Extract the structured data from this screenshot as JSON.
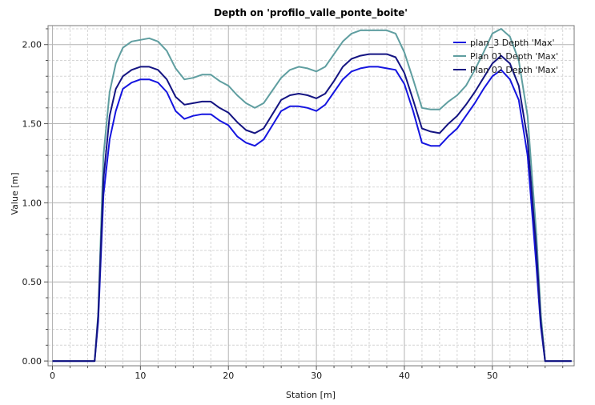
{
  "chart_data": {
    "type": "line",
    "title": "Depth on 'profilo_valle_ponte_boite'",
    "xlabel": "Station [m]",
    "ylabel": "Value [m]",
    "xlim": [
      -0.5,
      59.3
    ],
    "ylim": [
      -0.03,
      2.12
    ],
    "xticks": [
      0,
      10,
      20,
      30,
      40,
      50
    ],
    "xtick_labels": [
      "0",
      "10",
      "20",
      "30",
      "40",
      "50"
    ],
    "yticks": [
      0,
      0.5,
      1.0,
      1.5,
      2.0
    ],
    "ytick_labels": [
      "0.00",
      "0.50",
      "1.00",
      "1.50",
      "2.00"
    ],
    "grid": true,
    "legend_position": "top-right",
    "series": [
      {
        "name": "plan_3 Depth 'Max'",
        "color": "#1515e0",
        "x": [
          0,
          2,
          4,
          4.8,
          5.2,
          5.8,
          6.5,
          7.2,
          8,
          9,
          10,
          11,
          12,
          13,
          14,
          15,
          16,
          17,
          18,
          19,
          20,
          21,
          22,
          23,
          24,
          25,
          26,
          27,
          28,
          29,
          30,
          31,
          32,
          33,
          34,
          35,
          36,
          37,
          38,
          39,
          40,
          41,
          42,
          43,
          44,
          45,
          46,
          47,
          48,
          49,
          50,
          51,
          52,
          53,
          54,
          55,
          55.5,
          56,
          58,
          59
        ],
        "y": [
          0,
          0,
          0,
          0,
          0.25,
          1.05,
          1.4,
          1.58,
          1.72,
          1.76,
          1.78,
          1.78,
          1.76,
          1.7,
          1.58,
          1.53,
          1.55,
          1.56,
          1.56,
          1.52,
          1.49,
          1.42,
          1.38,
          1.36,
          1.4,
          1.49,
          1.58,
          1.61,
          1.61,
          1.6,
          1.58,
          1.62,
          1.7,
          1.78,
          1.83,
          1.85,
          1.86,
          1.86,
          1.85,
          1.84,
          1.75,
          1.58,
          1.38,
          1.36,
          1.36,
          1.42,
          1.47,
          1.55,
          1.63,
          1.72,
          1.8,
          1.84,
          1.78,
          1.65,
          1.3,
          0.6,
          0.22,
          0,
          0,
          0
        ]
      },
      {
        "name": "Plan 01 Depth 'Max'",
        "color": "#5f9ea0",
        "x": [
          0,
          2,
          4,
          4.8,
          5.2,
          5.8,
          6.5,
          7.2,
          8,
          9,
          10,
          11,
          12,
          13,
          14,
          15,
          16,
          17,
          18,
          19,
          20,
          21,
          22,
          23,
          24,
          25,
          26,
          27,
          28,
          29,
          30,
          31,
          32,
          33,
          34,
          35,
          36,
          37,
          38,
          39,
          40,
          41,
          42,
          43,
          44,
          45,
          46,
          47,
          48,
          49,
          50,
          51,
          52,
          53,
          54,
          55,
          55.5,
          56,
          58,
          59
        ],
        "y": [
          0,
          0,
          0,
          0,
          0.3,
          1.3,
          1.7,
          1.88,
          1.98,
          2.02,
          2.03,
          2.04,
          2.02,
          1.96,
          1.85,
          1.78,
          1.79,
          1.81,
          1.81,
          1.77,
          1.74,
          1.68,
          1.63,
          1.6,
          1.63,
          1.71,
          1.79,
          1.84,
          1.86,
          1.85,
          1.83,
          1.86,
          1.94,
          2.02,
          2.07,
          2.09,
          2.09,
          2.09,
          2.09,
          2.07,
          1.95,
          1.78,
          1.6,
          1.59,
          1.59,
          1.64,
          1.68,
          1.74,
          1.84,
          1.95,
          2.07,
          2.1,
          2.05,
          1.9,
          1.55,
          0.8,
          0.3,
          0,
          0,
          0
        ]
      },
      {
        "name": "Plan 02 Depth 'Max'",
        "color": "#141482",
        "x": [
          0,
          2,
          4,
          4.8,
          5.2,
          5.8,
          6.5,
          7.2,
          8,
          9,
          10,
          11,
          12,
          13,
          14,
          15,
          16,
          17,
          18,
          19,
          20,
          21,
          22,
          23,
          24,
          25,
          26,
          27,
          28,
          29,
          30,
          31,
          32,
          33,
          34,
          35,
          36,
          37,
          38,
          39,
          40,
          41,
          42,
          43,
          44,
          45,
          46,
          47,
          48,
          49,
          50,
          51,
          52,
          53,
          54,
          55,
          55.5,
          56,
          58,
          59
        ],
        "y": [
          0,
          0,
          0,
          0,
          0.28,
          1.15,
          1.55,
          1.72,
          1.8,
          1.84,
          1.86,
          1.86,
          1.84,
          1.78,
          1.67,
          1.62,
          1.63,
          1.64,
          1.64,
          1.6,
          1.57,
          1.51,
          1.46,
          1.44,
          1.47,
          1.56,
          1.65,
          1.68,
          1.69,
          1.68,
          1.66,
          1.69,
          1.77,
          1.86,
          1.91,
          1.93,
          1.94,
          1.94,
          1.94,
          1.92,
          1.82,
          1.65,
          1.47,
          1.45,
          1.44,
          1.5,
          1.55,
          1.62,
          1.7,
          1.79,
          1.88,
          1.93,
          1.88,
          1.74,
          1.4,
          0.7,
          0.25,
          0,
          0,
          0
        ]
      }
    ]
  }
}
